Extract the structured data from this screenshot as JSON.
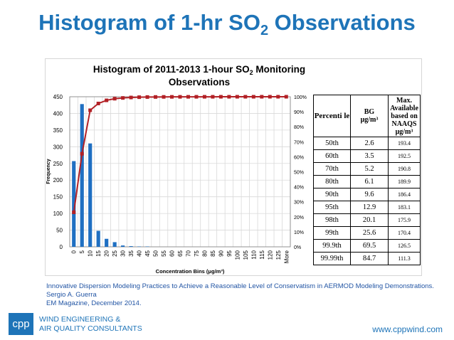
{
  "slide": {
    "title_main": "Histogram of 1-hr SO",
    "title_sub": "2",
    "title_tail": " Observations"
  },
  "chart_data": {
    "type": "bar",
    "title_line1_a": "Histogram of 2011-2013  1-hour SO",
    "title_line1_sub": "2",
    "title_line1_b": " Monitoring",
    "title_line2": "Observations",
    "xlabel": "Concentration Bins (μg/m³)",
    "ylabel": "Frequency",
    "ylim": [
      0,
      450
    ],
    "yticks": [
      "0",
      "50",
      "100",
      "150",
      "200",
      "250",
      "300",
      "350",
      "400",
      "450"
    ],
    "y2lim": [
      0,
      100
    ],
    "y2ticks": [
      "0%",
      "10%",
      "20%",
      "30%",
      "40%",
      "50%",
      "60%",
      "70%",
      "80%",
      "90%",
      "100%"
    ],
    "categories": [
      "0",
      "5",
      "10",
      "15",
      "20",
      "25",
      "30",
      "35",
      "40",
      "45",
      "50",
      "55",
      "60",
      "65",
      "70",
      "75",
      "80",
      "85",
      "90",
      "95",
      "100",
      "105",
      "110",
      "115",
      "120",
      "125",
      "More"
    ],
    "series": [
      {
        "type": "bar",
        "values": [
          257,
          428,
          310,
          48,
          24,
          14,
          4,
          2,
          1,
          1,
          0,
          0,
          0,
          0,
          0,
          0,
          0,
          0,
          0,
          0,
          0,
          0,
          0,
          0,
          0,
          0,
          0
        ],
        "color": "#1f6fc2"
      },
      {
        "type": "line",
        "values": [
          23,
          62,
          91,
          95.5,
          97.6,
          98.7,
          99.2,
          99.5,
          99.7,
          99.8,
          99.85,
          99.9,
          99.92,
          99.94,
          99.95,
          99.96,
          99.97,
          99.97,
          99.98,
          99.98,
          99.99,
          99.99,
          99.99,
          99.99,
          100,
          100,
          100
        ],
        "color": "#b22025"
      }
    ],
    "grid": true,
    "legend": "none"
  },
  "table": {
    "headers": {
      "percentile": "Percenti le",
      "bg": "BG",
      "bg_unit": "μg/m³",
      "max": "Max. Available based on NAAQS",
      "max_unit": "μg/m³"
    },
    "rows": [
      {
        "pct": "50th",
        "bg": "2.6",
        "max": "193.4"
      },
      {
        "pct": "60th",
        "bg": "3.5",
        "max": "192.5"
      },
      {
        "pct": "70th",
        "bg": "5.2",
        "max": "190.8"
      },
      {
        "pct": "80th",
        "bg": "6.1",
        "max": "189.9"
      },
      {
        "pct": "90th",
        "bg": "9.6",
        "max": "186.4"
      },
      {
        "pct": "95th",
        "bg": "12.9",
        "max": "183.1"
      },
      {
        "pct": "98th",
        "bg": "20.1",
        "max": "175.9"
      },
      {
        "pct": "99th",
        "bg": "25.6",
        "max": "170.4"
      },
      {
        "pct": "99.9th",
        "bg": "69.5",
        "max": "126.5"
      },
      {
        "pct": "99.99th",
        "bg": "84.7",
        "max": "111.3"
      }
    ]
  },
  "citation": {
    "line1": "Innovative Dispersion Modeling Practices to Achieve a Reasonable Level of Conservatism in AERMOD Modeling Demonstrations.",
    "line2": "Sergio A. Guerra",
    "line3": "EM Magazine, December 2014."
  },
  "footer": {
    "logo": "cpp",
    "company_line1": "WIND ENGINEERING &",
    "company_line2": "AIR QUALITY CONSULTANTS",
    "website": "www.cppwind.com"
  }
}
